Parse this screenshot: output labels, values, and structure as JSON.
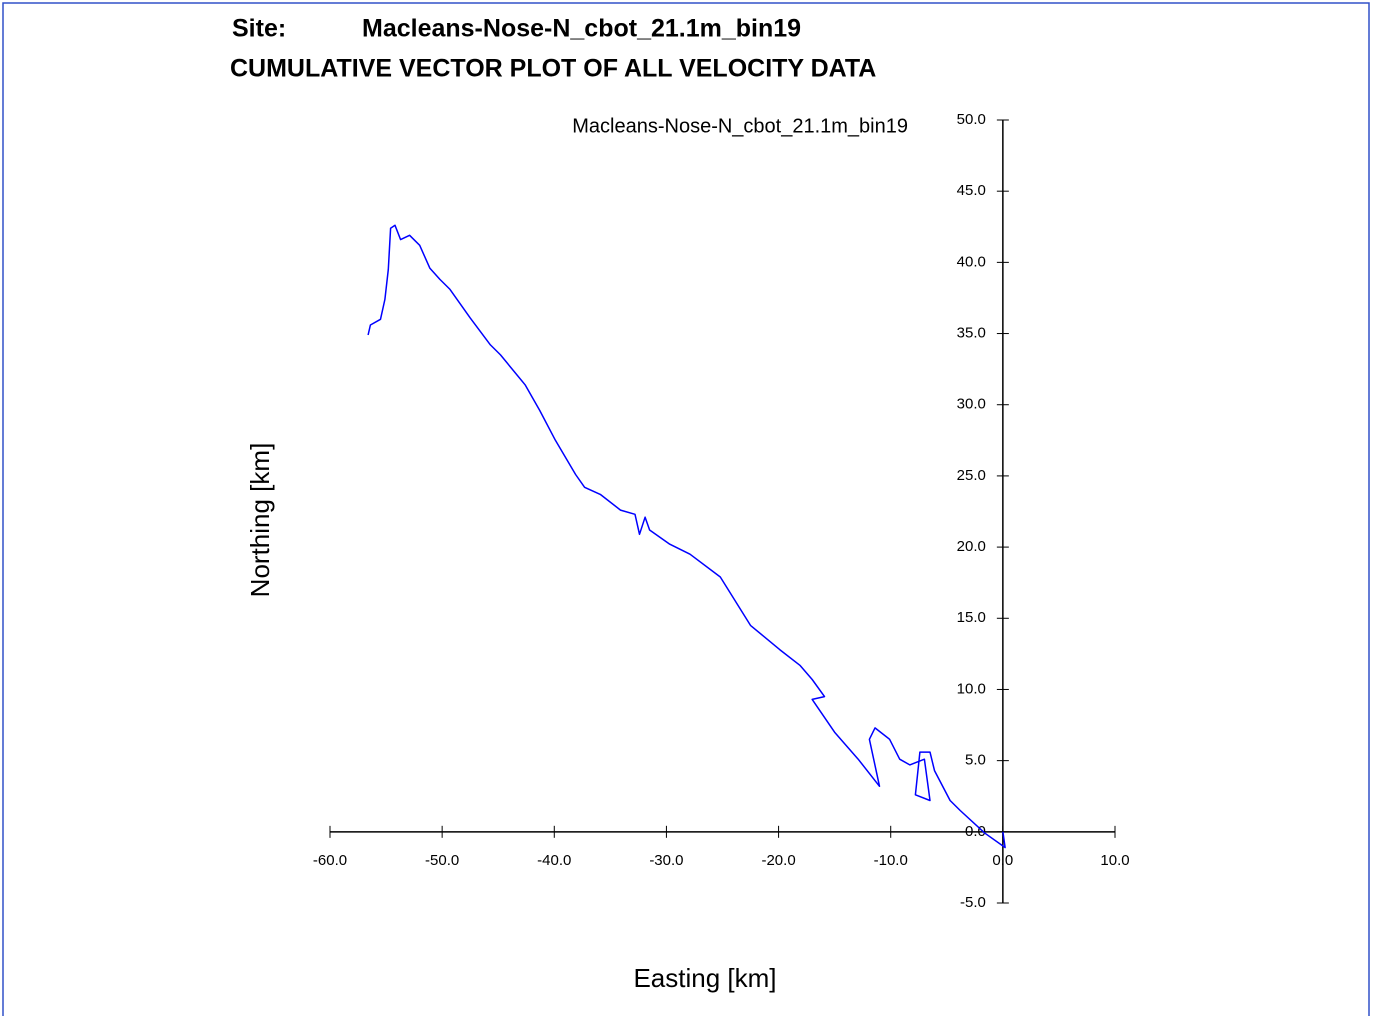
{
  "chart_data": {
    "type": "line",
    "site_label": "Site:",
    "site_name": "Macleans-Nose-N_cbot_21.1m_bin19",
    "title": "CUMULATIVE VECTOR PLOT OF ALL VELOCITY DATA",
    "xlabel": "Easting [km]",
    "ylabel": "Northing [km]",
    "xlim": [
      -60,
      10
    ],
    "ylim": [
      -5,
      50
    ],
    "xticks": [
      {
        "value": -60,
        "label": "-60.0"
      },
      {
        "value": -50,
        "label": "-50.0"
      },
      {
        "value": -40,
        "label": "-40.0"
      },
      {
        "value": -30,
        "label": "-30.0"
      },
      {
        "value": -20,
        "label": "-20.0"
      },
      {
        "value": -10,
        "label": "-10.0"
      },
      {
        "value": 0,
        "label": "0.0"
      },
      {
        "value": 10,
        "label": "10.0"
      }
    ],
    "yticks": [
      {
        "value": -5,
        "label": "-5.0"
      },
      {
        "value": 0,
        "label": "0.0"
      },
      {
        "value": 5,
        "label": "5.0"
      },
      {
        "value": 10,
        "label": "10.0"
      },
      {
        "value": 15,
        "label": "15.0"
      },
      {
        "value": 20,
        "label": "20.0"
      },
      {
        "value": 25,
        "label": "25.0"
      },
      {
        "value": 30,
        "label": "30.0"
      },
      {
        "value": 35,
        "label": "35.0"
      },
      {
        "value": 40,
        "label": "40.0"
      },
      {
        "value": 45,
        "label": "45.0"
      },
      {
        "value": 50,
        "label": "50.0"
      }
    ],
    "series": [
      {
        "name": "Macleans-Nose-N_cbot_21.1m_bin19",
        "color": "#0000ff",
        "x": [
          0,
          0.2,
          -1.6,
          -3.8,
          -4.7,
          -6.1,
          -6.5,
          -7.4,
          -7.8,
          -6.5,
          -7.0,
          -8.3,
          -9.2,
          -10.1,
          -11.4,
          -11.9,
          -11.0,
          -12.9,
          -15.0,
          -17.0,
          -15.9,
          -17.0,
          -18.1,
          -19.9,
          -22.5,
          -25.2,
          -27.9,
          -29.7,
          -31.5,
          -31.9,
          -32.4,
          -32.8,
          -34.1,
          -35.9,
          -37.3,
          -38.1,
          -39.9,
          -41.3,
          -42.6,
          -44.8,
          -45.7,
          -47.5,
          -49.3,
          -50.2,
          -51.1,
          -52.0,
          -52.9,
          -53.7,
          -54.2,
          -54.6,
          -54.8,
          -55.1,
          -55.5,
          -56.4,
          -56.6
        ],
        "values": [
          0,
          -1.1,
          -0.1,
          1.5,
          2.2,
          4.3,
          5.6,
          5.6,
          2.6,
          2.2,
          5.1,
          4.7,
          5.1,
          6.5,
          7.3,
          6.5,
          3.2,
          5.1,
          7.0,
          9.3,
          9.5,
          10.7,
          11.7,
          12.8,
          14.5,
          17.9,
          19.5,
          20.2,
          21.2,
          22.1,
          20.9,
          22.3,
          22.6,
          23.7,
          24.2,
          25.1,
          27.5,
          29.6,
          31.4,
          33.5,
          34.2,
          36.1,
          38.1,
          38.8,
          39.6,
          41.2,
          41.9,
          41.6,
          42.6,
          42.4,
          39.5,
          37.4,
          36.0,
          35.6,
          34.9
        ]
      }
    ]
  }
}
